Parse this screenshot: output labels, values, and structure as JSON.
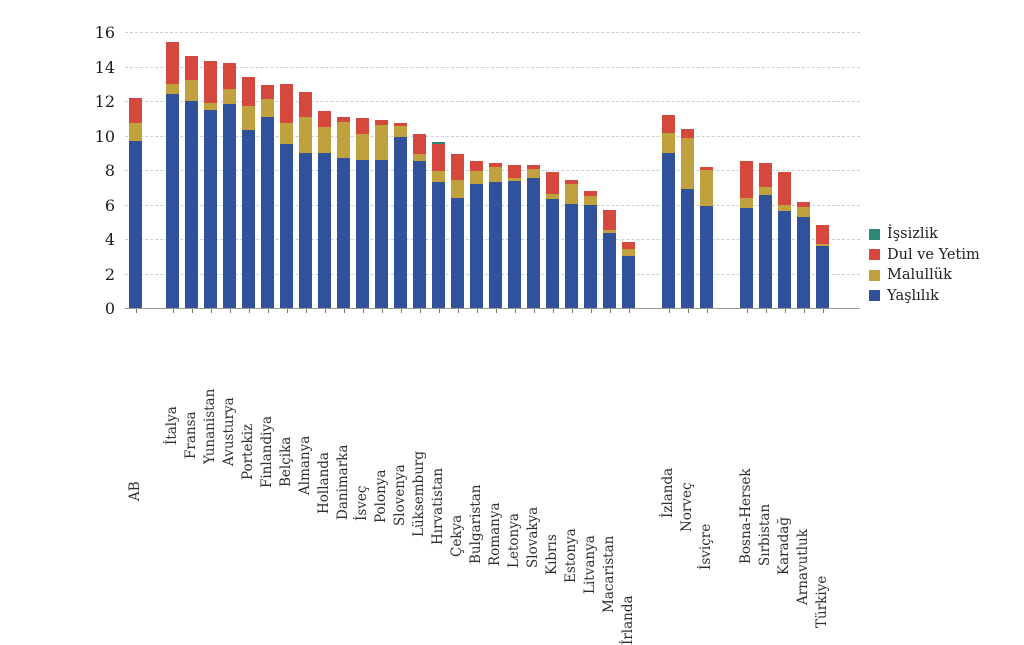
{
  "chart_data": {
    "type": "bar",
    "stacked": true,
    "title": "",
    "xlabel": "",
    "ylabel": "",
    "ylim": [
      0,
      16
    ],
    "yticks": [
      0,
      2,
      4,
      6,
      8,
      10,
      12,
      14,
      16
    ],
    "grid": "horizontal-dashed",
    "legend_position": "right",
    "categories": [
      "AB",
      "İtalya",
      "Fransa",
      "Yunanistan",
      "Avusturya",
      "Portekiz",
      "Finlandiya",
      "Belçika",
      "Almanya",
      "Hollanda",
      "Danimarka",
      "İsveç",
      "Polonya",
      "Slovenya",
      "Lüksemburg",
      "Hırvatistan",
      "Çekya",
      "Bulgaristan",
      "Romanya",
      "Letonya",
      "Slovakya",
      "Kıbrıs",
      "Estonya",
      "Litvanya",
      "Macaristan",
      "İrlanda",
      "İzlanda",
      "Norveç",
      "İsviçre",
      "Bosna-Hersek",
      "Sırbistan",
      "Karadağ",
      "Arnavutluk",
      "Türkiye"
    ],
    "group_breaks_after": [
      "AB",
      "İrlanda",
      "İsviçre"
    ],
    "series": [
      {
        "name": "Yaşlılık",
        "color": "#31519b",
        "values": [
          9.7,
          12.4,
          12.0,
          11.5,
          11.8,
          10.3,
          11.1,
          9.5,
          9.0,
          9.0,
          8.7,
          8.6,
          8.6,
          9.9,
          8.5,
          7.3,
          6.4,
          7.2,
          7.3,
          7.35,
          7.55,
          6.3,
          6.05,
          6.0,
          4.35,
          3.0,
          9.0,
          6.9,
          5.9,
          5.8,
          6.55,
          5.6,
          5.25,
          3.6
        ]
      },
      {
        "name": "Malullük",
        "color": "#bfa23d",
        "values": [
          1.0,
          0.6,
          1.2,
          0.4,
          0.9,
          1.4,
          1.0,
          1.2,
          2.1,
          1.5,
          2.1,
          1.5,
          2.0,
          0.65,
          0.4,
          0.65,
          1.0,
          0.75,
          0.85,
          0.2,
          0.5,
          0.3,
          1.15,
          0.5,
          0.2,
          0.4,
          1.15,
          2.95,
          2.1,
          0.6,
          0.45,
          0.4,
          0.6,
          0.1
        ]
      },
      {
        "name": "Dul ve Yetim",
        "color": "#d4483e",
        "values": [
          1.5,
          2.4,
          1.4,
          2.4,
          1.5,
          1.7,
          0.8,
          2.3,
          1.4,
          0.9,
          0.3,
          0.9,
          0.3,
          0.15,
          1.2,
          1.55,
          1.5,
          0.55,
          0.25,
          0.75,
          0.25,
          1.3,
          0.2,
          0.3,
          1.15,
          0.45,
          1.05,
          0.55,
          0.2,
          2.1,
          1.4,
          1.9,
          0.3,
          1.1
        ]
      },
      {
        "name": "İşsizlik",
        "color": "#2f8577",
        "values": [
          0,
          0,
          0,
          0,
          0,
          0,
          0,
          0,
          0,
          0,
          0,
          0,
          0,
          0,
          0,
          0.1,
          0,
          0,
          0,
          0,
          0,
          0,
          0,
          0,
          0,
          0,
          0,
          0,
          0,
          0,
          0,
          0,
          0,
          0
        ]
      }
    ],
    "legend": [
      {
        "label": "İşsizlik",
        "color": "#2f8577"
      },
      {
        "label": "Dul ve Yetim",
        "color": "#d4483e"
      },
      {
        "label": "Malullük",
        "color": "#bfa23d"
      },
      {
        "label": "Yaşlılık",
        "color": "#31519b"
      }
    ]
  },
  "layout_colors": {
    "gridline": "#c7cfdf",
    "axis": "#9a9a9a",
    "tick": "#777777",
    "text": "#2e2e2e"
  }
}
